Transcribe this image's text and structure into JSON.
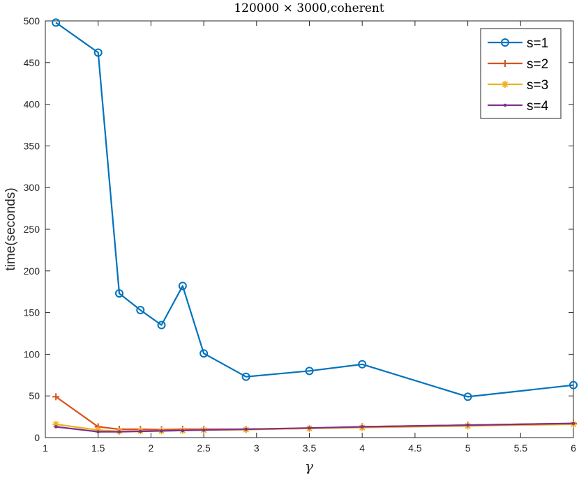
{
  "chart_data": {
    "type": "line",
    "title": "120000 × 3000,coherent",
    "xlabel": "γ",
    "ylabel": "time(seconds)",
    "xlim": [
      1,
      6
    ],
    "ylim": [
      0,
      500
    ],
    "xticks": [
      1,
      1.5,
      2,
      2.5,
      3,
      3.5,
      4,
      4.5,
      5,
      5.5,
      6
    ],
    "xtick_labels": [
      "1",
      "1.5",
      "2",
      "2.5",
      "3",
      "3.5",
      "4",
      "4.5",
      "5",
      "5.5",
      "6"
    ],
    "yticks": [
      0,
      50,
      100,
      150,
      200,
      250,
      300,
      350,
      400,
      450,
      500
    ],
    "ytick_labels": [
      "0",
      "50",
      "100",
      "150",
      "200",
      "250",
      "300",
      "350",
      "400",
      "450",
      "500"
    ],
    "grid": false,
    "legend_position": "top-right",
    "x": [
      1.1,
      1.5,
      1.7,
      1.9,
      2.1,
      2.3,
      2.5,
      2.9,
      3.5,
      4,
      5,
      6
    ],
    "series": [
      {
        "name": "s=1",
        "marker": "circle",
        "color": "#0072BD",
        "values": [
          498,
          462,
          173,
          153,
          135,
          182,
          101,
          73,
          80,
          88,
          49,
          63
        ]
      },
      {
        "name": "s=2",
        "marker": "plus",
        "color": "#D95319",
        "values": [
          49,
          13,
          10,
          10,
          9.5,
          10,
          10,
          10,
          11,
          13,
          15,
          17
        ]
      },
      {
        "name": "s=3",
        "marker": "star",
        "color": "#EDB120",
        "values": [
          16,
          9,
          7.5,
          8,
          8,
          8.5,
          9,
          9.5,
          11,
          12,
          14,
          16
        ]
      },
      {
        "name": "s=4",
        "marker": "point",
        "color": "#7E2F8E",
        "values": [
          13,
          7,
          7,
          7.5,
          8,
          8.5,
          9,
          10,
          11.5,
          13,
          15,
          17
        ]
      }
    ]
  }
}
